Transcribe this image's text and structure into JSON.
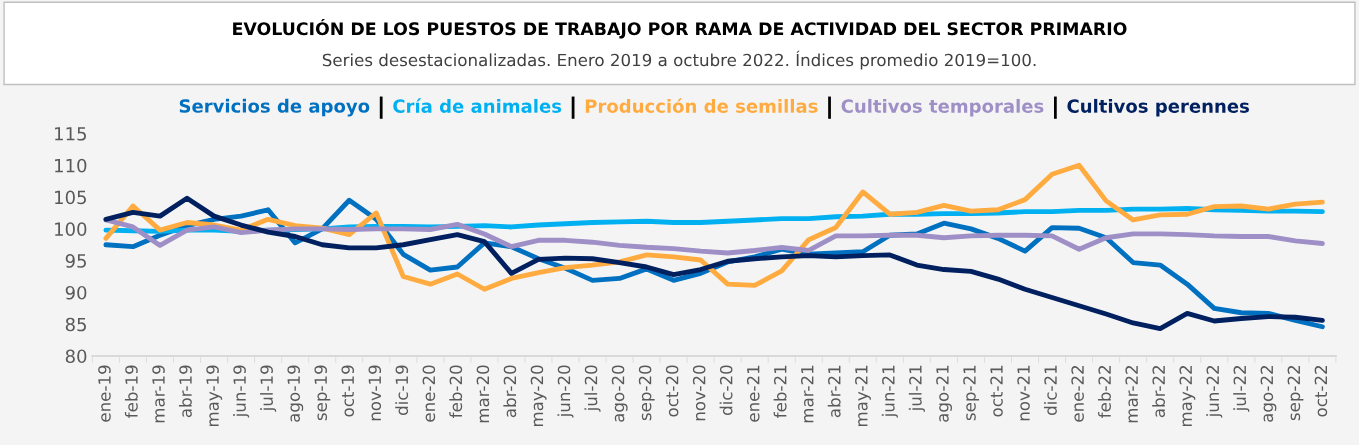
{
  "chart_data": {
    "type": "line",
    "title": "EVOLUCIÓN DE LOS PUESTOS DE TRABAJO POR RAMA DE ACTIVIDAD DEL SECTOR PRIMARIO",
    "subtitle": "Series desestacionalizadas. Enero 2019 a octubre 2022. Índices promedio 2019=100.",
    "categories": [
      "ene-19",
      "feb-19",
      "mar-19",
      "abr-19",
      "may-19",
      "jun-19",
      "jul-19",
      "ago-19",
      "sep-19",
      "oct-19",
      "nov-19",
      "dic-19",
      "ene-20",
      "feb-20",
      "mar-20",
      "abr-20",
      "may-20",
      "jun-20",
      "jul-20",
      "ago-20",
      "sep-20",
      "oct-20",
      "nov-20",
      "dic-20",
      "ene-21",
      "feb-21",
      "mar-21",
      "abr-21",
      "may-21",
      "jun-21",
      "jul-21",
      "ago-21",
      "sep-21",
      "oct-21",
      "nov-21",
      "dic-21",
      "ene-22",
      "feb-22",
      "mar-22",
      "abr-22",
      "may-22",
      "jun-22",
      "jul-22",
      "ago-22",
      "sep-22",
      "oct-22"
    ],
    "series": [
      {
        "name": "Servicios de apoyo",
        "color": "#0070c0",
        "values": [
          97.5,
          97.2,
          99,
          100.5,
          101.5,
          102,
          103,
          97.8,
          100,
          104.5,
          101.5,
          96,
          93.5,
          94,
          97.8,
          97.2,
          95.3,
          93.8,
          91.9,
          92.2,
          93.7,
          91.9,
          93,
          94.8,
          95.6,
          96.8,
          96,
          96.2,
          96.4,
          99,
          99.2,
          100.9,
          100,
          98.5,
          96.5,
          100.2,
          100.1,
          98.6,
          94.7,
          94.3,
          91.3,
          87.5,
          86.8,
          86.7,
          85.6,
          84.6
        ]
      },
      {
        "name": "Cría de animales",
        "color": "#00b0f0",
        "values": [
          99.8,
          99.7,
          99.6,
          99.8,
          99.8,
          99.6,
          99.8,
          99.9,
          100,
          100.3,
          100.4,
          100.4,
          100.3,
          100.4,
          100.5,
          100.3,
          100.6,
          100.8,
          101,
          101.1,
          101.2,
          101,
          101,
          101.2,
          101.4,
          101.6,
          101.6,
          101.9,
          102,
          102.3,
          102.3,
          102.4,
          102.4,
          102.5,
          102.7,
          102.7,
          102.9,
          102.9,
          103.1,
          103.1,
          103.2,
          103,
          102.9,
          102.8,
          102.8,
          102.7
        ]
      },
      {
        "name": "Producción de semillas",
        "color": "#ffab40",
        "values": [
          98.5,
          103.6,
          99.8,
          101,
          100.6,
          99.8,
          101.5,
          100.5,
          100.1,
          99.1,
          102.5,
          92.5,
          91.3,
          92.9,
          90.5,
          92.2,
          93.1,
          93.9,
          94.3,
          94.8,
          95.9,
          95.6,
          95.1,
          91.3,
          91.1,
          93.4,
          98.3,
          100.2,
          105.8,
          102.3,
          102.6,
          103.7,
          102.8,
          103,
          104.6,
          108.6,
          110,
          104.4,
          101.4,
          102.2,
          102.3,
          103.5,
          103.6,
          103.1,
          103.9,
          104.2
        ]
      },
      {
        "name": "Cultivos temporales",
        "color": "#9f8fc7",
        "values": [
          101.4,
          100.3,
          97.4,
          99.8,
          100.3,
          99.4,
          99.8,
          100,
          100,
          99.9,
          100,
          100,
          99.9,
          100.7,
          99.2,
          97.2,
          98.2,
          98.2,
          97.9,
          97.4,
          97.1,
          96.9,
          96.5,
          96.2,
          96.6,
          97.1,
          96.6,
          98.9,
          98.9,
          99,
          99,
          98.6,
          98.9,
          99,
          99,
          98.9,
          96.8,
          98.6,
          99.2,
          99.2,
          99.1,
          98.9,
          98.8,
          98.8,
          98.1,
          97.7
        ]
      },
      {
        "name": "Cultivos perennes",
        "color": "#002060",
        "values": [
          101.5,
          102.6,
          102,
          104.8,
          102,
          100.6,
          99.5,
          98.8,
          97.5,
          97,
          97,
          97.5,
          98.3,
          99.1,
          98,
          93,
          95.2,
          95.4,
          95.3,
          94.7,
          94,
          92.8,
          93.6,
          94.9,
          95.3,
          95.6,
          95.8,
          95.6,
          95.8,
          95.9,
          94.3,
          93.6,
          93.3,
          92.1,
          90.5,
          89.2,
          87.9,
          86.6,
          85.2,
          84.3,
          86.7,
          85.5,
          85.9,
          86.2,
          86.1,
          85.6
        ]
      }
    ],
    "ylim": [
      80,
      115
    ],
    "yticks": [
      80,
      85,
      90,
      95,
      100,
      105,
      110,
      115
    ],
    "grid": false,
    "legend": "top",
    "marker": "none",
    "line_style": "solid"
  }
}
